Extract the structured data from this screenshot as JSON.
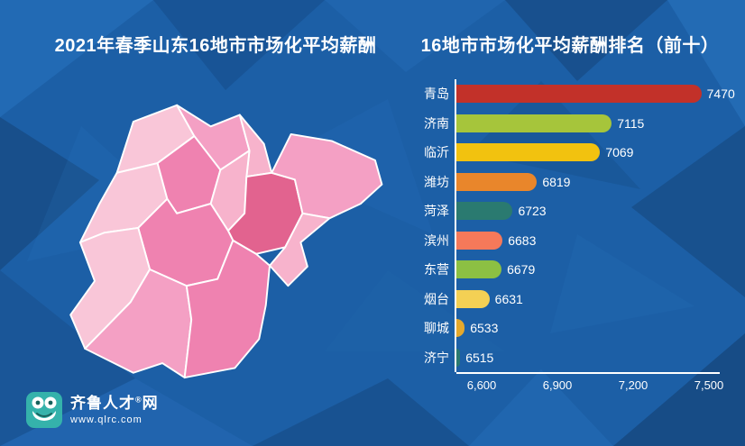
{
  "header": {
    "left_title": "2021年春季山东16地市市场化平均薪酬",
    "right_title": "16地市市场化平均薪酬排名（前十）"
  },
  "chart_data": {
    "type": "bar",
    "orientation": "horizontal",
    "title": "16地市市场化平均薪酬排名（前十）",
    "categories": [
      "青岛",
      "济南",
      "临沂",
      "潍坊",
      "菏泽",
      "滨州",
      "东营",
      "烟台",
      "聊城",
      "济宁"
    ],
    "values": [
      7470,
      7115,
      7069,
      6819,
      6723,
      6683,
      6679,
      6631,
      6533,
      6515
    ],
    "bar_colors": [
      "#c23129",
      "#a6c53b",
      "#f2c20f",
      "#e9862b",
      "#2a7a70",
      "#f5795a",
      "#8cc043",
      "#f4d054",
      "#e5a92c",
      "#2a7a70"
    ],
    "xlim": [
      6500,
      7500
    ],
    "xticks": [
      {
        "label": "6,600",
        "value": 6600
      },
      {
        "label": "6,900",
        "value": 6900
      },
      {
        "label": "7,200",
        "value": 7200
      },
      {
        "label": "7,500",
        "value": 7500
      }
    ],
    "grid": false,
    "legend": "none",
    "axis_color": "#ffffff",
    "label_color": "#ffffff"
  },
  "map": {
    "label": "山东省16地市地图",
    "palette": [
      "#f9c6d8",
      "#f4a0c4",
      "#f7b3cc",
      "#ef82b0",
      "#e2638f"
    ]
  },
  "logo": {
    "brand": "齐鲁人才",
    "registered_mark": "®",
    "suffix": "网",
    "website": "www.qlrc.com"
  },
  "colors": {
    "background": "#1c5fa6",
    "title_text": "#ffffff"
  }
}
